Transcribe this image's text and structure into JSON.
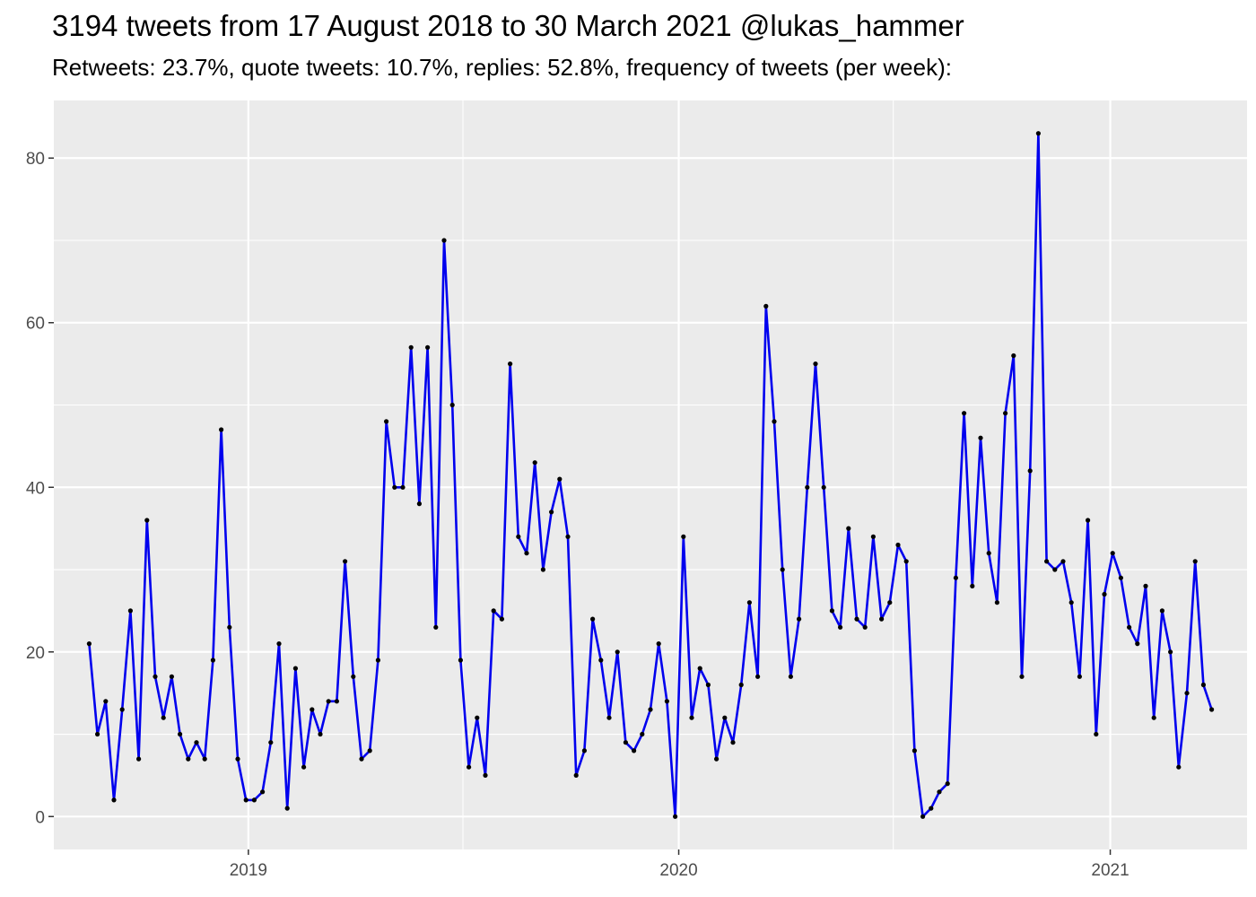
{
  "chart_data": {
    "type": "line",
    "title": "3194 tweets from 17 August 2018 to 30 March 2021 @lukas_hammer",
    "subtitle": "Retweets: 23.7%, quote tweets: 10.7%, replies: 52.8%, frequency of tweets (per week):",
    "xlabel": "",
    "ylabel": "",
    "x_start": "2018-08-19",
    "x_step_days": 7,
    "xlim": [
      "2018-07-20",
      "2021-04-27"
    ],
    "ylim": [
      -4,
      87
    ],
    "x_ticks": [
      {
        "date": "2019-01-01",
        "label": "2019"
      },
      {
        "date": "2020-01-01",
        "label": "2020"
      },
      {
        "date": "2021-01-01",
        "label": "2021"
      }
    ],
    "x_minor_ticks": [
      "2018-07-02",
      "2019-07-02",
      "2020-07-01"
    ],
    "y_ticks": [
      0,
      20,
      40,
      60,
      80
    ],
    "y_minor_ticks": [
      10,
      30,
      50,
      70
    ],
    "grid": true,
    "line_color": "#0000ee",
    "point_color": "#000000",
    "panel_color": "#ebebeb",
    "series": [
      {
        "values": [
          21,
          10,
          14,
          2,
          13,
          25,
          7,
          36,
          17,
          12,
          17,
          10,
          7,
          9,
          7,
          19,
          47,
          23,
          7,
          2,
          2,
          3,
          9,
          21,
          1,
          18,
          6,
          13,
          10,
          14,
          14,
          31,
          17,
          7,
          8,
          19,
          48,
          40,
          40,
          57,
          38,
          57,
          23,
          70,
          50,
          19,
          6,
          12,
          5,
          25,
          24,
          55,
          34,
          32,
          43,
          30,
          37,
          41,
          34,
          5,
          8,
          24,
          19,
          12,
          20,
          9,
          8,
          10,
          13,
          21,
          14,
          0,
          34,
          12,
          18,
          16,
          7,
          12,
          9,
          16,
          26,
          17,
          62,
          48,
          30,
          17,
          24,
          40,
          55,
          40,
          25,
          23,
          35,
          24,
          23,
          34,
          24,
          26,
          33,
          31,
          8,
          0,
          1,
          3,
          4,
          29,
          49,
          28,
          46,
          32,
          26,
          49,
          56,
          17,
          42,
          83,
          31,
          30,
          31,
          26,
          17,
          36,
          10,
          27,
          32,
          29,
          23,
          21,
          28,
          12,
          25,
          20,
          6,
          15,
          31,
          16,
          13
        ]
      }
    ]
  }
}
